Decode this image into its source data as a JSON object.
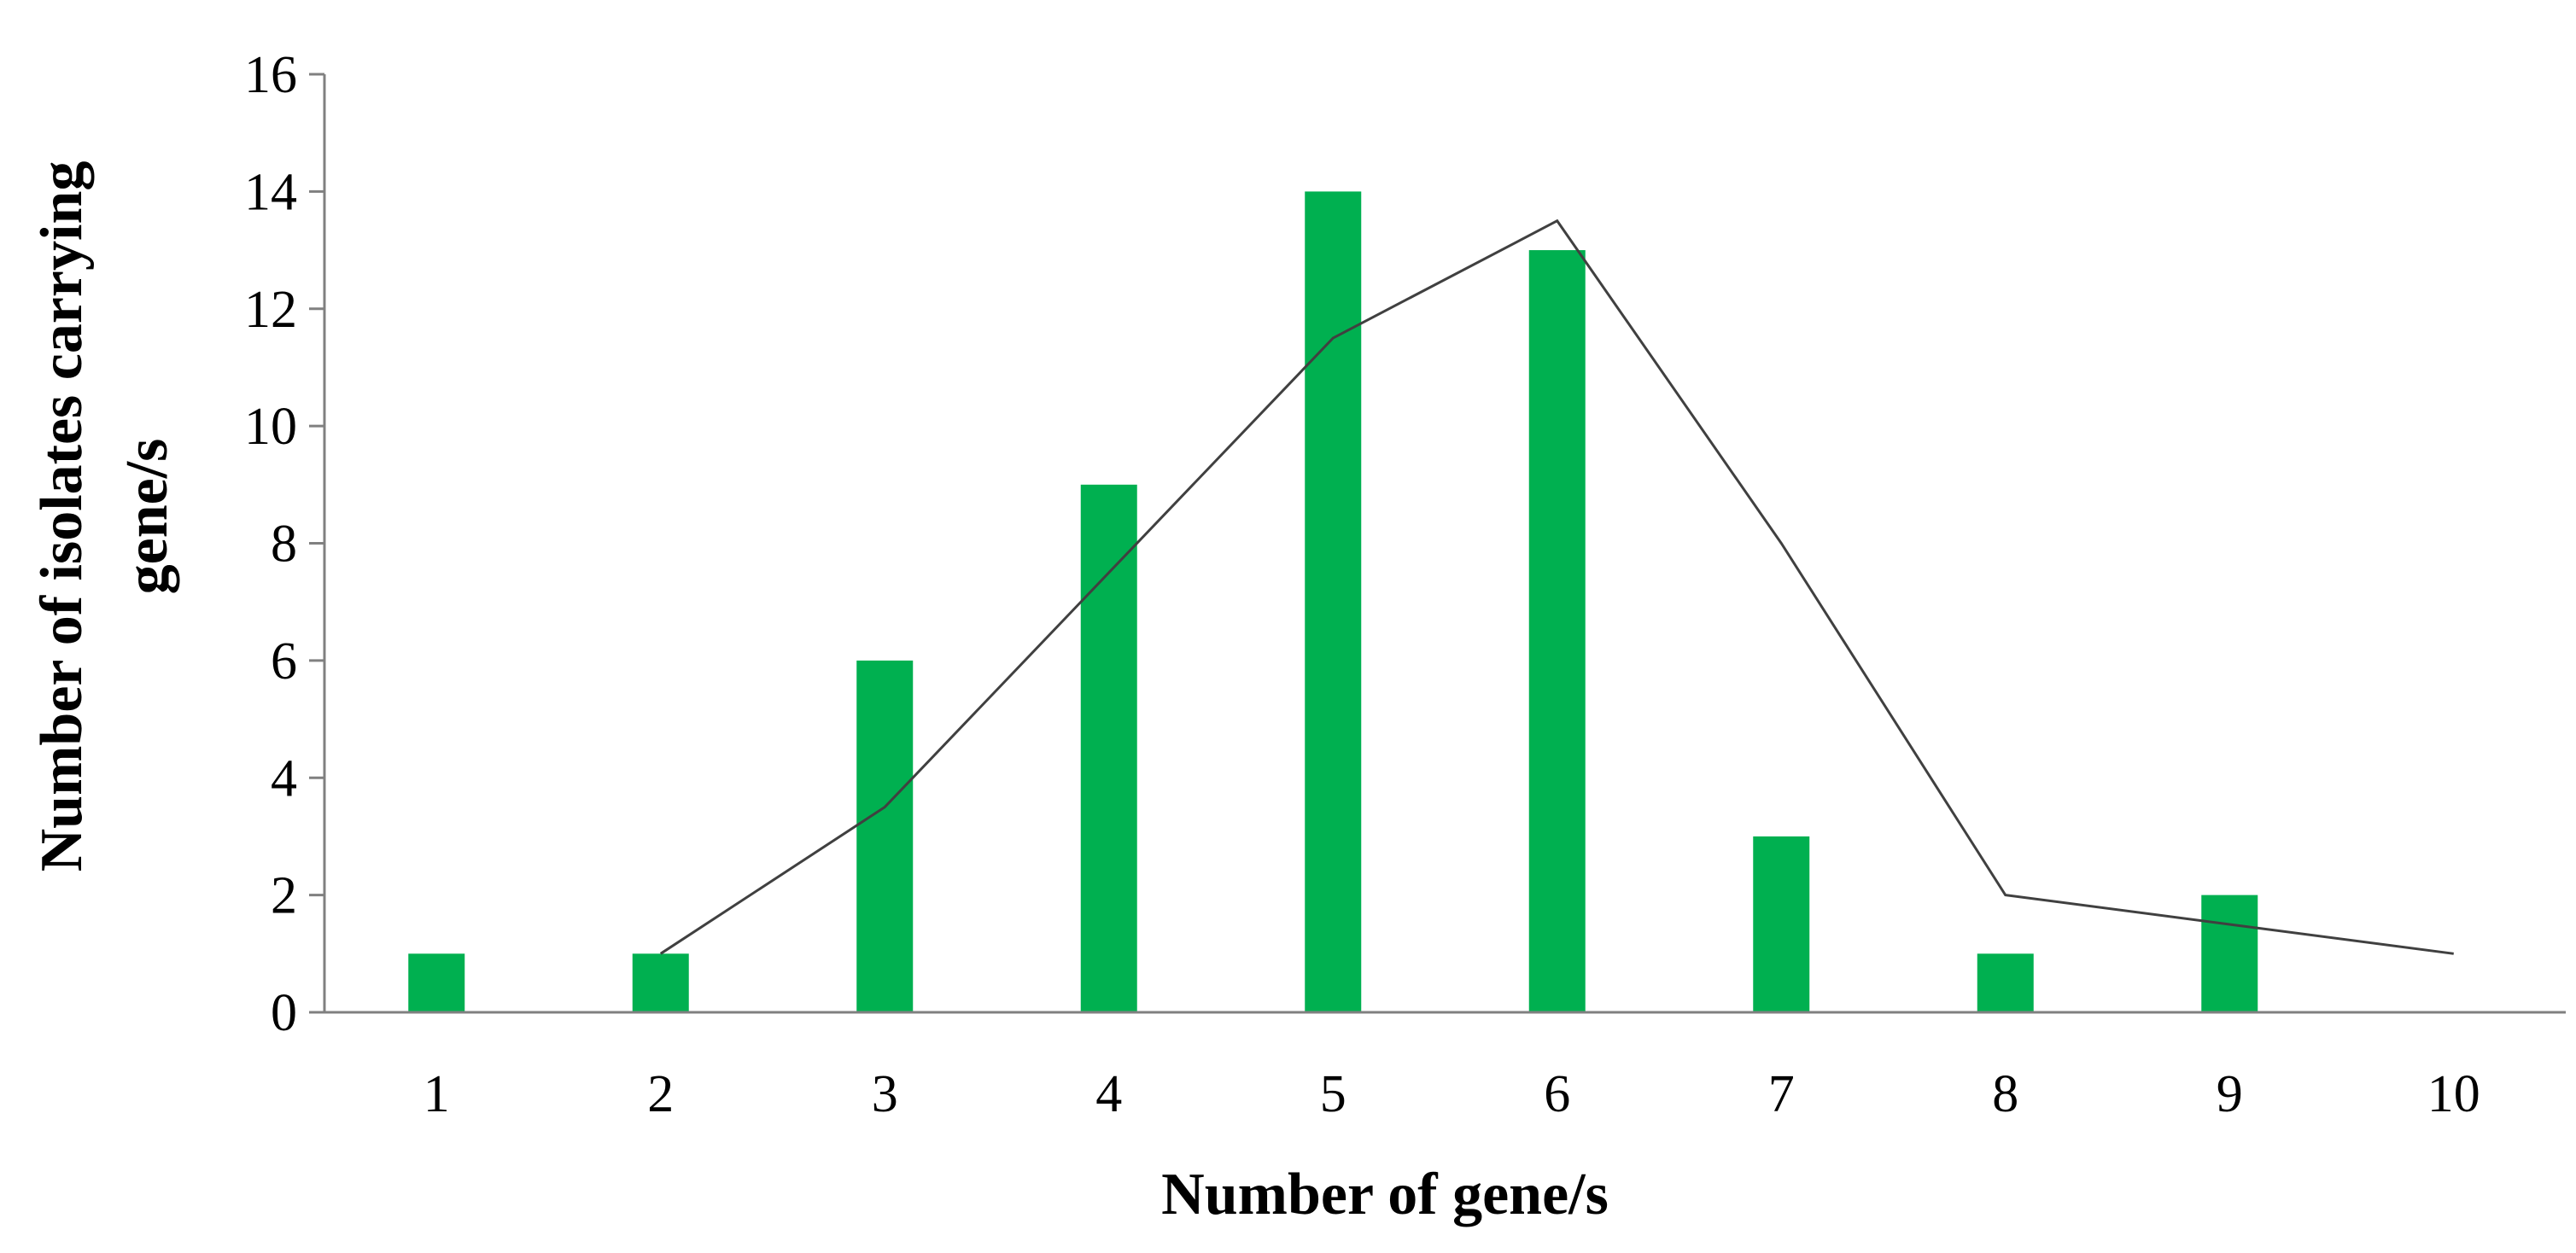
{
  "chart_data": {
    "type": "bar",
    "categories": [
      "1",
      "2",
      "3",
      "4",
      "5",
      "6",
      "7",
      "8",
      "9",
      "10"
    ],
    "series": [
      {
        "type": "bar",
        "values": [
          1,
          1,
          6,
          9,
          14,
          13,
          3,
          1,
          2,
          null
        ],
        "color": "#00b050"
      },
      {
        "type": "line",
        "values": [
          null,
          1,
          3.5,
          7.5,
          11.5,
          13.5,
          8,
          2,
          1.5,
          1
        ],
        "color": "#404040"
      }
    ],
    "xlabel": "Number of gene/s",
    "ylabel_lines": [
      "Number of isolates carrying",
      "gene/s"
    ],
    "ylim": [
      0,
      16
    ],
    "yticks": [
      0,
      2,
      4,
      6,
      8,
      10,
      12,
      14,
      16
    ],
    "grid": false,
    "legend": "none"
  }
}
